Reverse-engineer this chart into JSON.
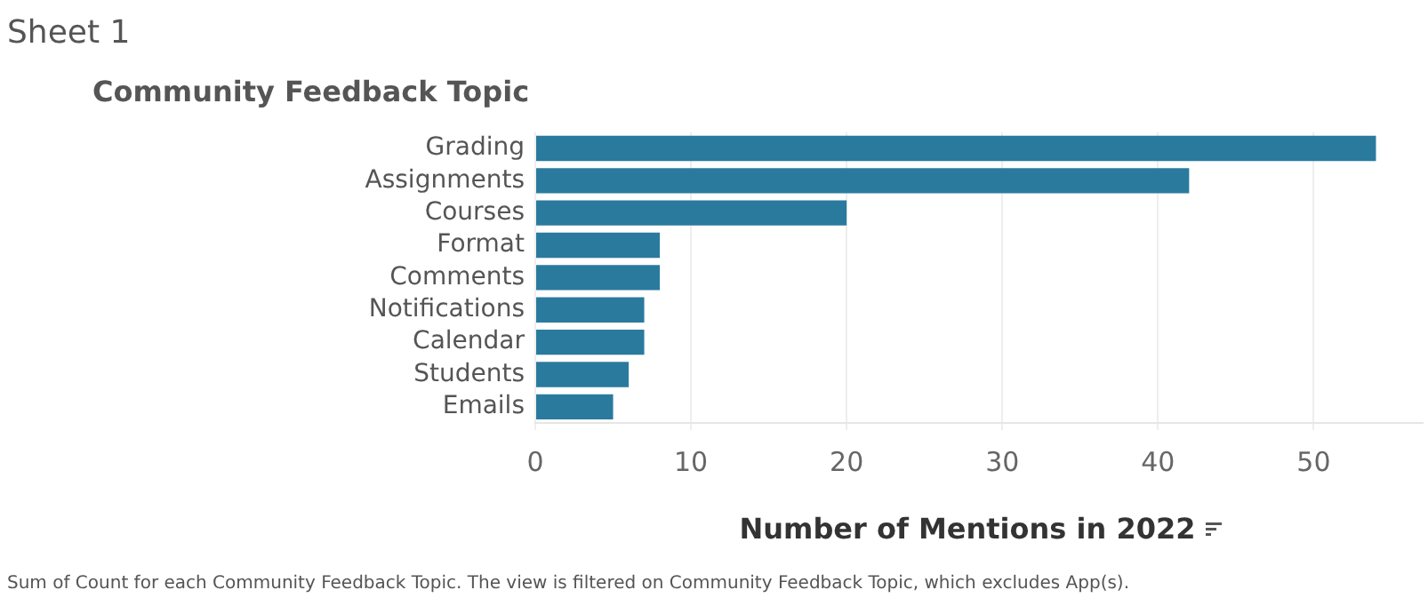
{
  "chart_data": {
    "type": "bar",
    "orientation": "horizontal",
    "title": "Sheet 1",
    "ylabel": "Community Feedback Topic",
    "xlabel": "Number of Mentions in 2022",
    "categories": [
      "Grading",
      "Assignments",
      "Courses",
      "Format",
      "Comments",
      "Notifications",
      "Calendar",
      "Students",
      "Emails"
    ],
    "values": [
      54,
      42,
      20,
      8,
      8,
      7,
      7,
      6,
      5
    ],
    "color": "#2a7a9e",
    "xlim": [
      0,
      57
    ],
    "xticks": [
      0,
      10,
      20,
      30,
      40,
      50
    ],
    "grid": "x",
    "legend": false,
    "annotations": [
      "Sum of Count for each Community Feedback Topic. The view is filtered on Community Feedback Topic, which excludes App(s)."
    ]
  }
}
